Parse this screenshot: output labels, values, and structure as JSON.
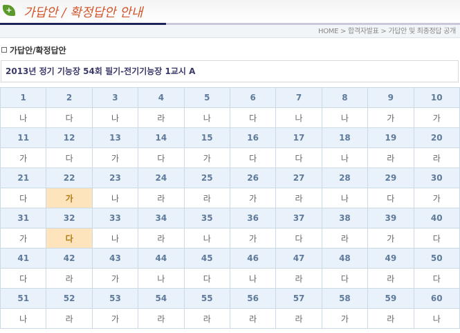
{
  "header": {
    "logo_text": "가답안 / 확정답안 안내",
    "logo_icon": "leaf-plus-icon"
  },
  "breadcrumb": [
    "HOME",
    "합격자발표",
    "가답안 및 최종정답 공개"
  ],
  "section_title": "가답안/확정답안",
  "exam_title": "2013년 정기 기능장 54회 필기-전기기능장 1교시 A",
  "colors": {
    "header_bg": "#e9f1fa",
    "highlight": "#fde4bd",
    "logo": "#d2552a"
  },
  "answers": [
    "나",
    "다",
    "나",
    "라",
    "나",
    "다",
    "나",
    "나",
    "가",
    "가",
    "가",
    "다",
    "가",
    "다",
    "가",
    "다",
    "다",
    "나",
    "라",
    "라",
    "다",
    "가",
    "나",
    "라",
    "라",
    "가",
    "라",
    "나",
    "다",
    "가",
    "가",
    "다",
    "나",
    "라",
    "나",
    "가",
    "다",
    "라",
    "가",
    "다",
    "다",
    "라",
    "가",
    "나",
    "다",
    "나",
    "라",
    "다",
    "라",
    "다",
    "나",
    "라",
    "가",
    "라",
    "라",
    "라",
    "라",
    "가",
    "라",
    "나"
  ],
  "highlighted": [
    22,
    32
  ]
}
